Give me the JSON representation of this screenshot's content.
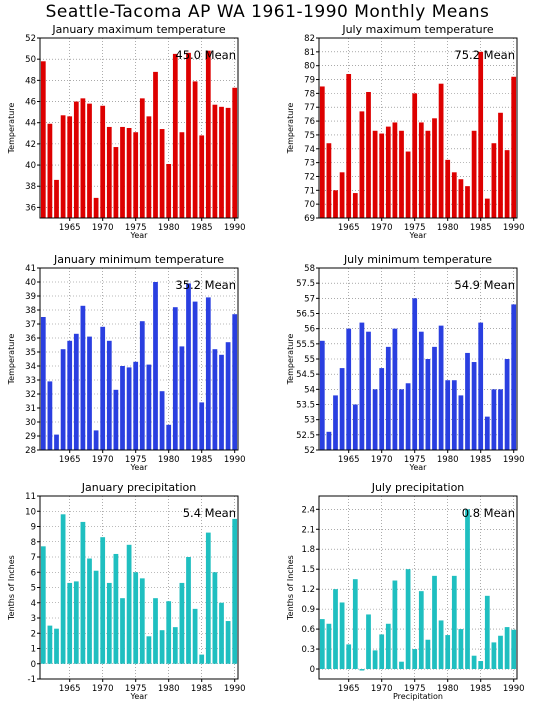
{
  "title": "Seattle-Tacoma AP WA   1961-1990 Monthly Means",
  "chart_data": [
    {
      "type": "bar",
      "title": "January maximum temperature",
      "annotation": "45.0  Mean",
      "ylabel": "Temperature",
      "xlabel": "Year",
      "color": "#dd0000",
      "ylim": [
        35,
        52
      ],
      "yticks": [
        36,
        38,
        40,
        42,
        44,
        46,
        48,
        50,
        52
      ],
      "xticks": [
        1965,
        1970,
        1975,
        1980,
        1985,
        1990
      ],
      "x": [
        1961,
        1962,
        1963,
        1964,
        1965,
        1966,
        1967,
        1968,
        1969,
        1970,
        1971,
        1972,
        1973,
        1974,
        1975,
        1976,
        1977,
        1978,
        1979,
        1980,
        1981,
        1982,
        1983,
        1984,
        1985,
        1986,
        1987,
        1988,
        1989,
        1990
      ],
      "values": [
        49.8,
        43.9,
        38.6,
        44.7,
        44.6,
        46.0,
        46.3,
        45.8,
        36.9,
        45.6,
        43.6,
        41.7,
        43.6,
        43.5,
        43.1,
        46.3,
        44.6,
        48.8,
        43.4,
        40.1,
        50.5,
        43.1,
        50.6,
        47.9,
        42.8,
        50.8,
        45.7,
        45.5,
        45.4,
        47.3
      ],
      "grid": true
    },
    {
      "type": "bar",
      "title": "July maximum temperature",
      "annotation": "75.2  Mean",
      "ylabel": "Temperature",
      "xlabel": "Year",
      "color": "#dd0000",
      "ylim": [
        69,
        82
      ],
      "yticks": [
        69,
        70,
        71,
        72,
        73,
        74,
        75,
        76,
        77,
        78,
        79,
        80,
        81,
        82
      ],
      "xticks": [
        1965,
        1970,
        1975,
        1980,
        1985,
        1990
      ],
      "x": [
        1961,
        1962,
        1963,
        1964,
        1965,
        1966,
        1967,
        1968,
        1969,
        1970,
        1971,
        1972,
        1973,
        1974,
        1975,
        1976,
        1977,
        1978,
        1979,
        1980,
        1981,
        1982,
        1983,
        1984,
        1985,
        1986,
        1987,
        1988,
        1989,
        1990
      ],
      "values": [
        78.5,
        74.4,
        71.0,
        72.3,
        79.4,
        70.8,
        76.7,
        78.1,
        75.3,
        75.1,
        75.6,
        75.9,
        75.3,
        73.8,
        78.0,
        75.9,
        75.3,
        76.2,
        78.7,
        73.2,
        72.3,
        71.8,
        71.3,
        75.3,
        81.0,
        70.4,
        74.4,
        76.6,
        73.9,
        79.2
      ],
      "grid": true
    },
    {
      "type": "bar",
      "title": "January minimum temperature",
      "annotation": "35.2  Mean",
      "ylabel": "Temperature",
      "xlabel": "Year",
      "color": "#2a3fe0",
      "ylim": [
        28,
        41
      ],
      "yticks": [
        28,
        29,
        30,
        31,
        32,
        33,
        34,
        35,
        36,
        37,
        38,
        39,
        40,
        41
      ],
      "xticks": [
        1965,
        1970,
        1975,
        1980,
        1985,
        1990
      ],
      "x": [
        1961,
        1962,
        1963,
        1964,
        1965,
        1966,
        1967,
        1968,
        1969,
        1970,
        1971,
        1972,
        1973,
        1974,
        1975,
        1976,
        1977,
        1978,
        1979,
        1980,
        1981,
        1982,
        1983,
        1984,
        1985,
        1986,
        1987,
        1988,
        1989,
        1990
      ],
      "values": [
        37.5,
        32.9,
        29.1,
        35.2,
        35.8,
        36.3,
        38.3,
        36.1,
        29.4,
        36.8,
        35.8,
        32.3,
        34.0,
        33.9,
        34.3,
        37.2,
        34.1,
        40.0,
        32.2,
        29.8,
        38.2,
        35.4,
        39.9,
        38.6,
        31.4,
        38.9,
        35.2,
        34.8,
        35.7,
        37.7
      ],
      "grid": true
    },
    {
      "type": "bar",
      "title": "July minimum temperature",
      "annotation": "54.9  Mean",
      "ylabel": "Temperature",
      "xlabel": "Year",
      "color": "#2a3fe0",
      "ylim": [
        52,
        58
      ],
      "yticks": [
        52,
        52.5,
        53,
        53.5,
        54,
        54.5,
        55,
        55.5,
        56,
        56.5,
        57,
        57.5,
        58
      ],
      "xticks": [
        1965,
        1970,
        1975,
        1980,
        1985,
        1990
      ],
      "x": [
        1961,
        1962,
        1963,
        1964,
        1965,
        1966,
        1967,
        1968,
        1969,
        1970,
        1971,
        1972,
        1973,
        1974,
        1975,
        1976,
        1977,
        1978,
        1979,
        1980,
        1981,
        1982,
        1983,
        1984,
        1985,
        1986,
        1987,
        1988,
        1989,
        1990
      ],
      "values": [
        55.6,
        52.6,
        53.8,
        54.7,
        56.0,
        53.5,
        56.2,
        55.9,
        54.0,
        54.7,
        55.4,
        56.0,
        54.0,
        54.2,
        57.0,
        55.9,
        55.0,
        55.4,
        56.1,
        54.3,
        54.3,
        53.8,
        55.2,
        54.9,
        56.2,
        53.1,
        54.0,
        54.0,
        55.0,
        56.8
      ],
      "grid": true
    },
    {
      "type": "bar",
      "title": "January precipitation",
      "annotation": "5.4  Mean",
      "ylabel": "Tenths of Inches",
      "xlabel": "Year",
      "color": "#1fbfc0",
      "ylim": [
        -1,
        11
      ],
      "yticks": [
        -1,
        0,
        1,
        2,
        3,
        4,
        5,
        6,
        7,
        8,
        9,
        10,
        11
      ],
      "xticks": [
        1965,
        1970,
        1975,
        1980,
        1985,
        1990
      ],
      "x": [
        1961,
        1962,
        1963,
        1964,
        1965,
        1966,
        1967,
        1968,
        1969,
        1970,
        1971,
        1972,
        1973,
        1974,
        1975,
        1976,
        1977,
        1978,
        1979,
        1980,
        1981,
        1982,
        1983,
        1984,
        1985,
        1986,
        1987,
        1988,
        1989,
        1990
      ],
      "values": [
        7.7,
        2.5,
        2.3,
        9.8,
        5.3,
        5.4,
        9.3,
        6.9,
        6.1,
        8.3,
        5.3,
        7.2,
        4.3,
        7.8,
        6.0,
        5.6,
        1.8,
        4.3,
        2.2,
        4.1,
        2.4,
        5.3,
        7.0,
        3.6,
        0.6,
        8.6,
        6.0,
        4.0,
        2.8,
        9.5
      ],
      "grid": true
    },
    {
      "type": "bar",
      "title": "July precipitation",
      "annotation": "0.8  Mean",
      "ylabel": "Tenths of Inches",
      "xlabel": "Precipitation",
      "color": "#1fbfc0",
      "ylim": [
        -0.15,
        2.6
      ],
      "yticks": [
        0,
        0.3,
        0.6,
        0.9,
        1.2,
        1.5,
        1.8,
        2.1,
        2.4
      ],
      "xticks": [
        1965,
        1970,
        1975,
        1980,
        1985,
        1990
      ],
      "x": [
        1961,
        1962,
        1963,
        1964,
        1965,
        1966,
        1967,
        1968,
        1969,
        1970,
        1971,
        1972,
        1973,
        1974,
        1975,
        1976,
        1977,
        1978,
        1979,
        1980,
        1981,
        1982,
        1983,
        1984,
        1985,
        1986,
        1987,
        1988,
        1989,
        1990
      ],
      "values": [
        0.75,
        0.68,
        1.2,
        1.0,
        0.37,
        1.35,
        0.0,
        0.82,
        0.28,
        0.52,
        0.68,
        1.33,
        0.11,
        1.5,
        0.3,
        1.17,
        0.44,
        1.4,
        0.73,
        0.51,
        1.4,
        0.6,
        2.4,
        0.2,
        0.12,
        1.1,
        0.4,
        0.5,
        0.63,
        0.59
      ],
      "grid": true
    }
  ]
}
